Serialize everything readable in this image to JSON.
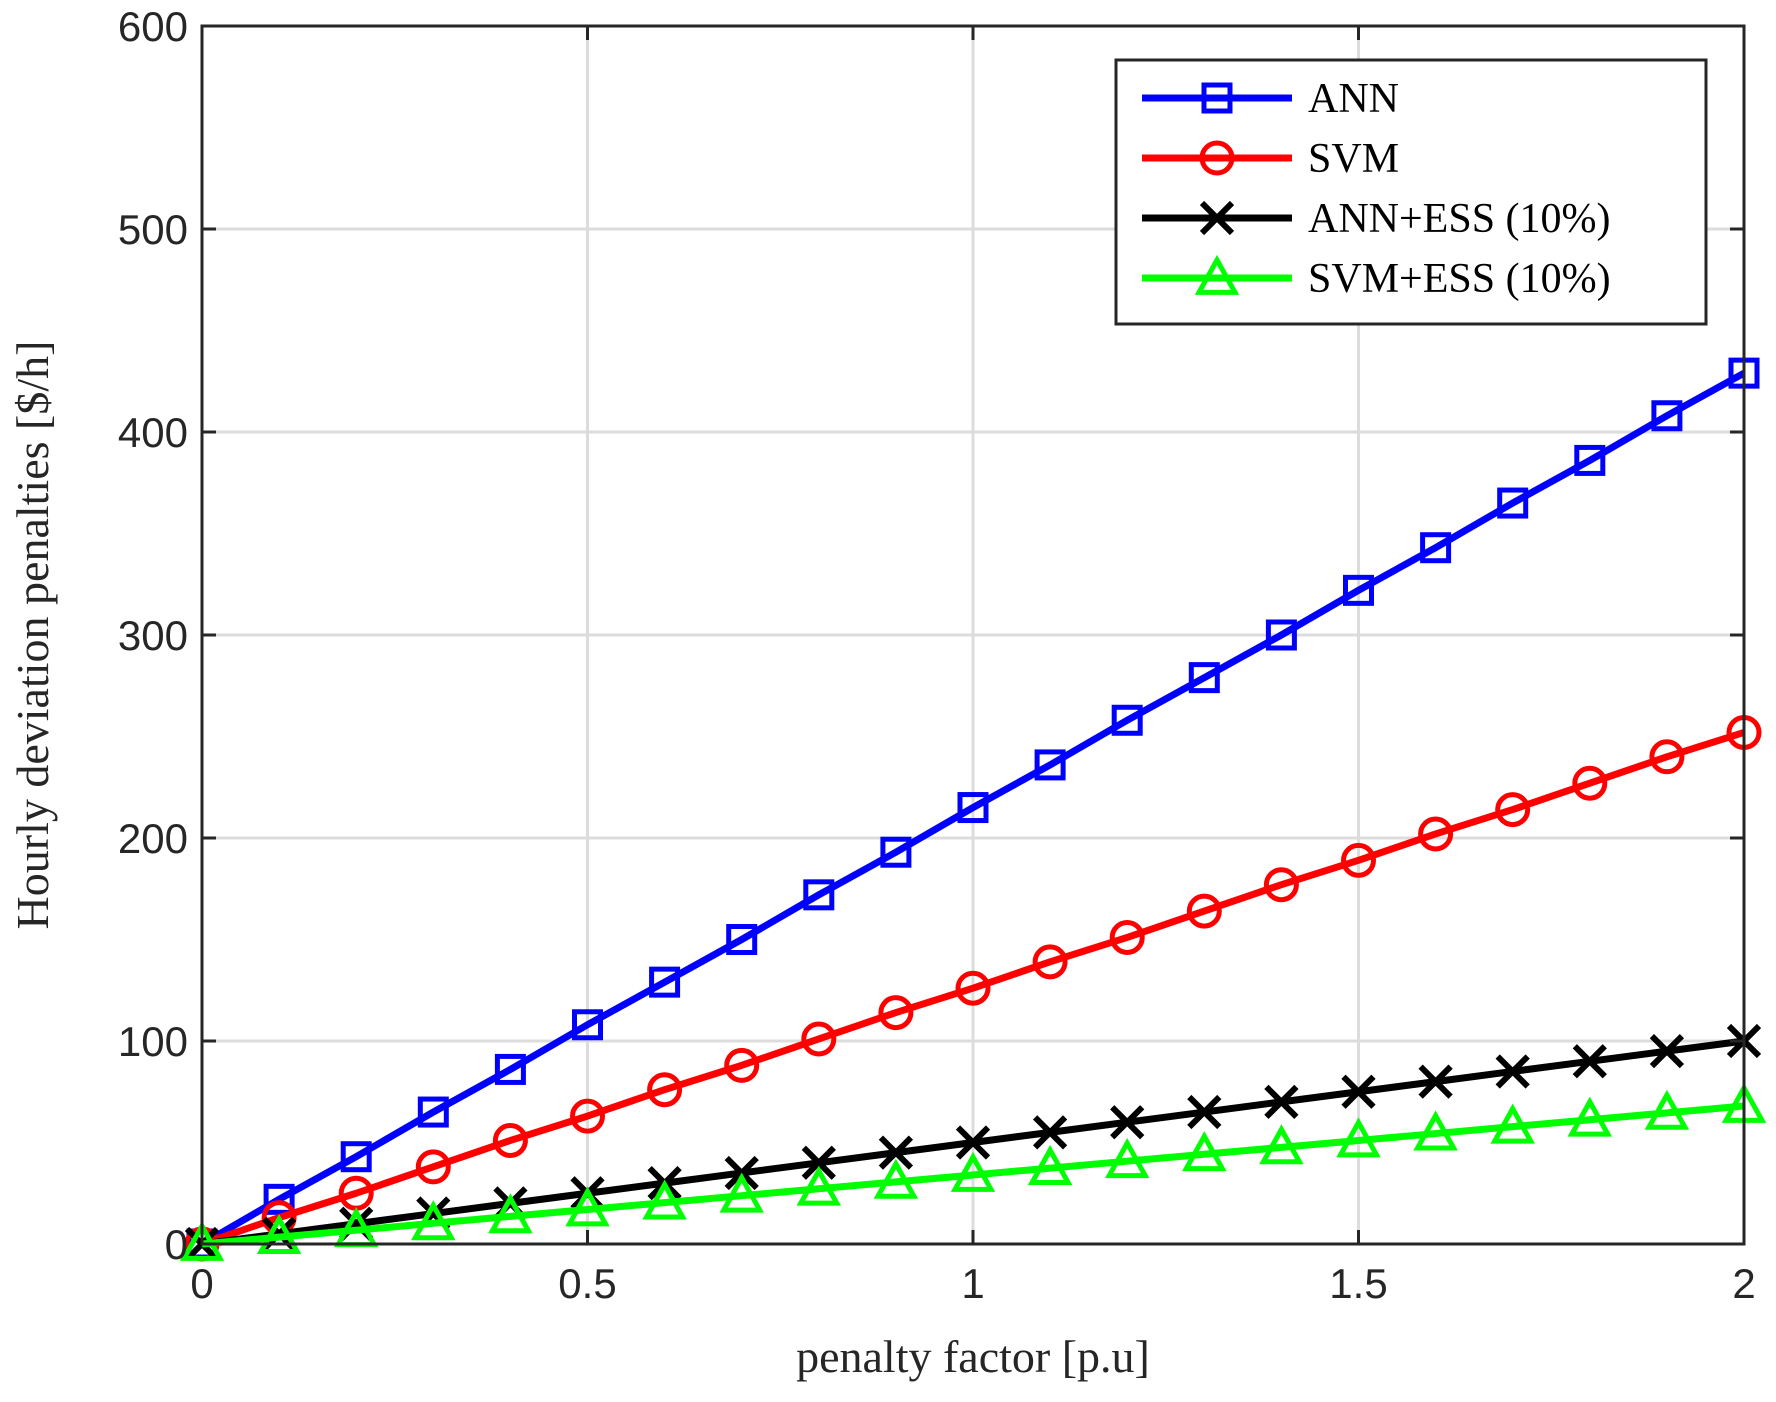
{
  "chart_data": {
    "type": "line",
    "title": "",
    "xlabel": "penalty factor [p.u]",
    "ylabel": "Hourly deviation penalties [$/h]",
    "xlim": [
      0,
      2
    ],
    "ylim": [
      0,
      600
    ],
    "grid": true,
    "legend_position": "top-right",
    "x_ticks": [
      0,
      0.5,
      1,
      1.5,
      2
    ],
    "x_tick_labels": [
      "0",
      "0.5",
      "1",
      "1.5",
      "2"
    ],
    "y_ticks": [
      0,
      100,
      200,
      300,
      400,
      500,
      600
    ],
    "y_tick_labels": [
      "0",
      "100",
      "200",
      "300",
      "400",
      "500",
      "600"
    ],
    "x": [
      0,
      0.1,
      0.2,
      0.3,
      0.4,
      0.5,
      0.6,
      0.7,
      0.8,
      0.9,
      1.0,
      1.1,
      1.2,
      1.3,
      1.4,
      1.5,
      1.6,
      1.7,
      1.8,
      1.9,
      2.0
    ],
    "series": [
      {
        "name": "ANN",
        "color": "#0000ff",
        "marker": "square",
        "values": [
          0,
          22,
          43,
          65,
          86,
          108,
          129,
          150,
          172,
          193,
          215,
          236,
          258,
          279,
          300,
          322,
          343,
          365,
          386,
          408,
          429
        ]
      },
      {
        "name": "SVM",
        "color": "#ff0000",
        "marker": "circle",
        "values": [
          0,
          13,
          25,
          38,
          51,
          63,
          76,
          88,
          101,
          114,
          126,
          139,
          151,
          164,
          177,
          189,
          202,
          214,
          227,
          240,
          252
        ]
      },
      {
        "name": "ANN+ESS (10%)",
        "color": "#000000",
        "marker": "x",
        "values": [
          0,
          5,
          10,
          15,
          20,
          25,
          30,
          35,
          40,
          45,
          50,
          55,
          60,
          65,
          70,
          75,
          80,
          85,
          90,
          95,
          100
        ]
      },
      {
        "name": "SVM+ESS (10%)",
        "color": "#00ff00",
        "marker": "triangle",
        "values": [
          0,
          3.4,
          6.8,
          10.2,
          13.6,
          17,
          20.4,
          23.8,
          27.2,
          30.6,
          34,
          37.4,
          40.8,
          44.2,
          47.6,
          51,
          54.4,
          57.8,
          61.2,
          64.6,
          68
        ]
      }
    ]
  }
}
